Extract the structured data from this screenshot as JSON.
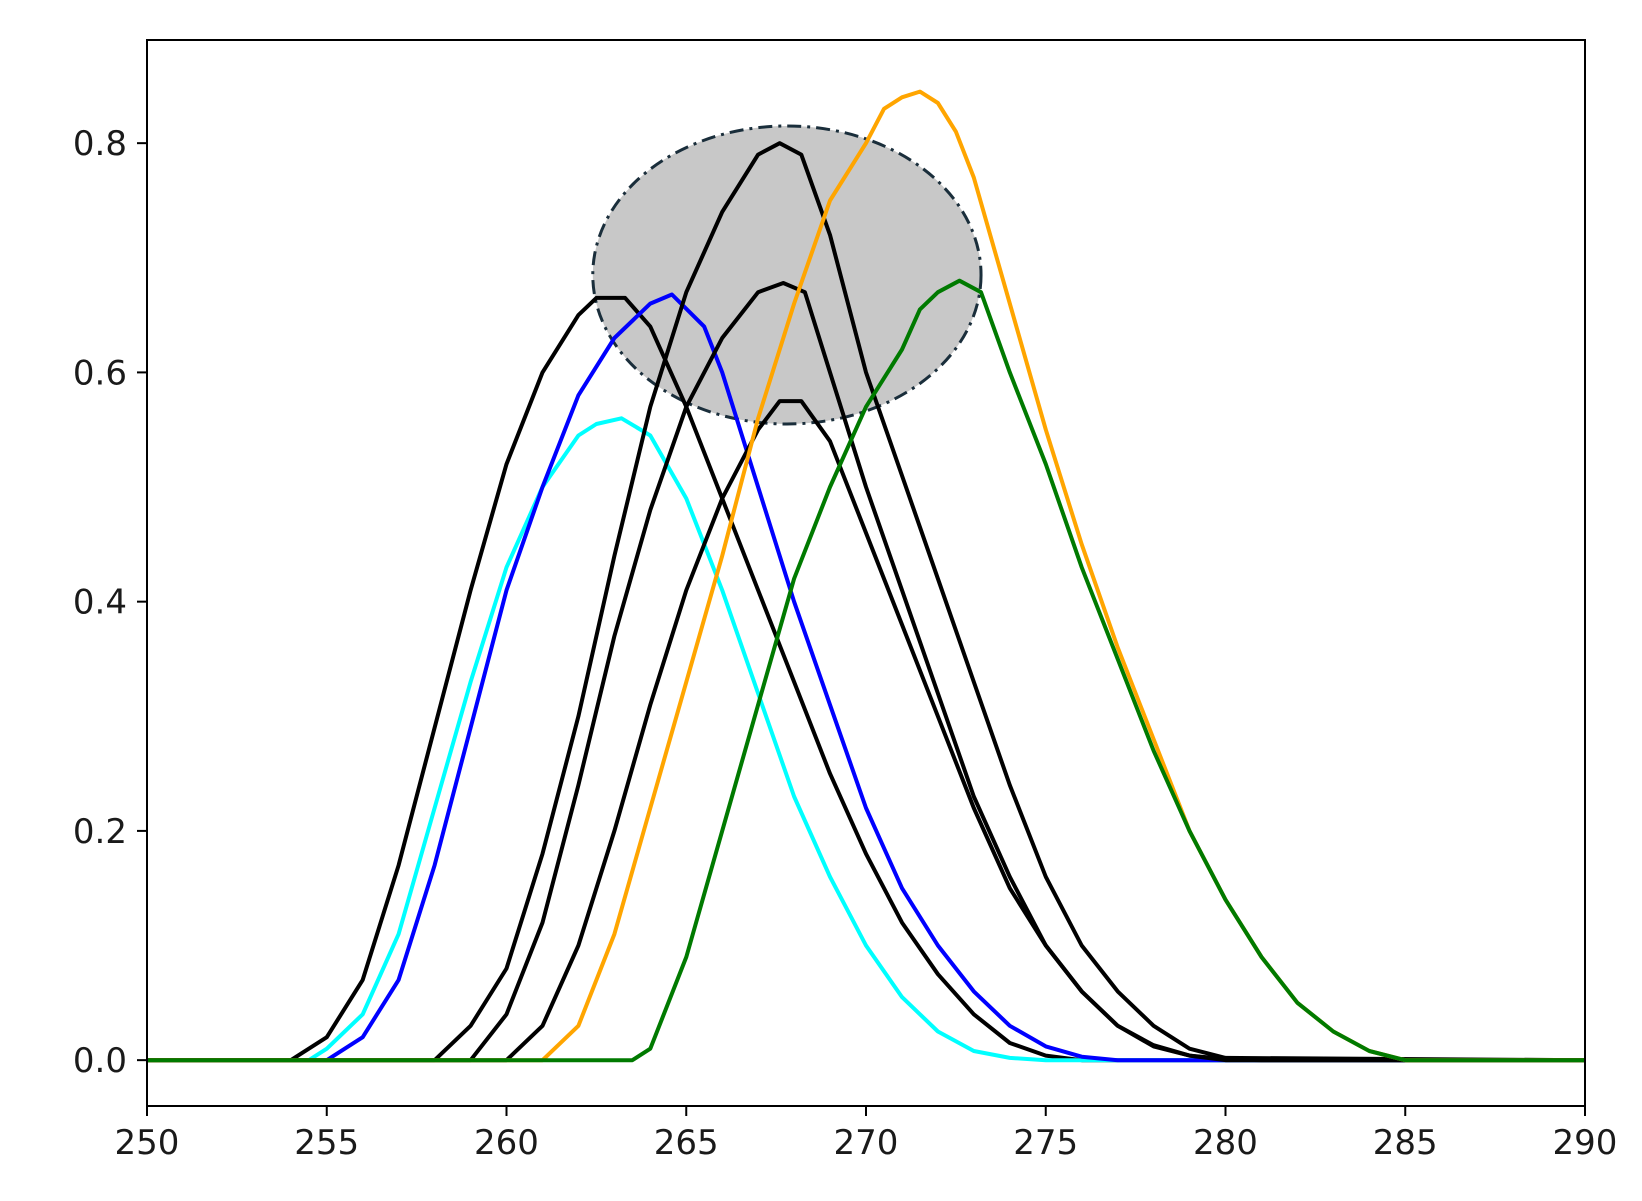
{
  "chart_data": {
    "type": "line",
    "title": "",
    "xlabel": "",
    "ylabel": "",
    "xlim": [
      250,
      290
    ],
    "ylim": [
      -0.04,
      0.89
    ],
    "x_ticks": [
      250,
      255,
      260,
      265,
      270,
      275,
      280,
      285,
      290
    ],
    "x_tick_labels": [
      "250",
      "255",
      "260",
      "265",
      "270",
      "275",
      "280",
      "285",
      "290"
    ],
    "y_ticks": [
      0.0,
      0.2,
      0.4,
      0.6,
      0.8
    ],
    "y_tick_labels": [
      "0.0",
      "0.2",
      "0.4",
      "0.6",
      "0.8"
    ],
    "grid": false,
    "legend": "none",
    "highlight_region": {
      "shape": "ellipse",
      "center": [
        267.8,
        0.685
      ],
      "x_radius": 5.4,
      "y_radius": 0.13,
      "fill": "#c8c8c8",
      "stroke": "#1a2e3b",
      "stroke_style": "dash-dot"
    },
    "series": [
      {
        "color": "#000000",
        "x": [
          250,
          254,
          255,
          256,
          257,
          258,
          259,
          260,
          261,
          262,
          262.5,
          263.3,
          264,
          265,
          266,
          267,
          268,
          269,
          270,
          271,
          272,
          273,
          274,
          275,
          276,
          290
        ],
        "y": [
          0,
          0,
          0.02,
          0.07,
          0.17,
          0.29,
          0.41,
          0.52,
          0.6,
          0.65,
          0.665,
          0.665,
          0.64,
          0.57,
          0.49,
          0.41,
          0.33,
          0.25,
          0.18,
          0.12,
          0.075,
          0.04,
          0.015,
          0.004,
          0,
          0
        ]
      },
      {
        "color": "#00ffff",
        "x": [
          250,
          254.5,
          255,
          256,
          257,
          258,
          259,
          260,
          261,
          262,
          262.5,
          263.2,
          264,
          265,
          266,
          267,
          268,
          269,
          270,
          271,
          272,
          273,
          274,
          275,
          290
        ],
        "y": [
          0,
          0,
          0.01,
          0.04,
          0.11,
          0.22,
          0.33,
          0.43,
          0.5,
          0.545,
          0.555,
          0.56,
          0.545,
          0.49,
          0.41,
          0.32,
          0.23,
          0.16,
          0.1,
          0.055,
          0.025,
          0.008,
          0.002,
          0,
          0
        ]
      },
      {
        "color": "#0000ff",
        "x": [
          250,
          255,
          256,
          257,
          258,
          259,
          260,
          261,
          262,
          263,
          264,
          264.6,
          265.5,
          266,
          267,
          268,
          269,
          270,
          271,
          272,
          273,
          274,
          275,
          276,
          277,
          290
        ],
        "y": [
          0,
          0,
          0.02,
          0.07,
          0.17,
          0.29,
          0.41,
          0.5,
          0.58,
          0.63,
          0.66,
          0.668,
          0.64,
          0.6,
          0.5,
          0.4,
          0.31,
          0.22,
          0.15,
          0.1,
          0.06,
          0.03,
          0.012,
          0.003,
          0,
          0
        ]
      },
      {
        "color": "#000000",
        "x": [
          250,
          258,
          259,
          260,
          261,
          262,
          263,
          264,
          265,
          266,
          267,
          267.6,
          268.2,
          269,
          270,
          271,
          272,
          273,
          274,
          275,
          276,
          277,
          278,
          279,
          280,
          290
        ],
        "y": [
          0,
          0,
          0.03,
          0.08,
          0.18,
          0.3,
          0.44,
          0.57,
          0.67,
          0.74,
          0.79,
          0.8,
          0.79,
          0.72,
          0.6,
          0.51,
          0.42,
          0.33,
          0.24,
          0.16,
          0.1,
          0.06,
          0.03,
          0.01,
          0.002,
          0
        ]
      },
      {
        "color": "#000000",
        "x": [
          250,
          259,
          260,
          261,
          262,
          263,
          264,
          265,
          266,
          267,
          267.7,
          268.3,
          269,
          270,
          271,
          272,
          273,
          274,
          275,
          276,
          277,
          278,
          279,
          280,
          290
        ],
        "y": [
          0,
          0,
          0.04,
          0.12,
          0.24,
          0.37,
          0.48,
          0.57,
          0.63,
          0.67,
          0.678,
          0.67,
          0.6,
          0.5,
          0.41,
          0.32,
          0.23,
          0.16,
          0.1,
          0.06,
          0.03,
          0.012,
          0.004,
          0,
          0
        ]
      },
      {
        "color": "#000000",
        "x": [
          250,
          260,
          261,
          262,
          263,
          264,
          265,
          266,
          267,
          267.6,
          268.2,
          269,
          270,
          271,
          272,
          273,
          274,
          275,
          276,
          277,
          278,
          279,
          280,
          281,
          290
        ],
        "y": [
          0,
          0,
          0.03,
          0.1,
          0.2,
          0.31,
          0.41,
          0.49,
          0.55,
          0.575,
          0.575,
          0.54,
          0.46,
          0.38,
          0.3,
          0.22,
          0.15,
          0.1,
          0.06,
          0.03,
          0.013,
          0.004,
          0.001,
          0,
          0
        ]
      },
      {
        "color": "#ffa500",
        "x": [
          250,
          261,
          262,
          263,
          264,
          265,
          266,
          267,
          268,
          269,
          270,
          270.5,
          271,
          271.5,
          272,
          272.5,
          273,
          274,
          275,
          276,
          277,
          278,
          279,
          280,
          281,
          282,
          283,
          284,
          285,
          290
        ],
        "y": [
          0,
          0,
          0.03,
          0.11,
          0.22,
          0.33,
          0.44,
          0.56,
          0.66,
          0.75,
          0.8,
          0.83,
          0.84,
          0.845,
          0.835,
          0.81,
          0.77,
          0.66,
          0.55,
          0.45,
          0.36,
          0.28,
          0.2,
          0.14,
          0.09,
          0.05,
          0.025,
          0.008,
          0,
          0
        ]
      },
      {
        "color": "#007a00",
        "x": [
          250,
          263.5,
          264,
          265,
          266,
          267,
          268,
          269,
          270,
          271,
          271.5,
          272,
          272.6,
          273.2,
          274,
          275,
          276,
          277,
          278,
          279,
          280,
          281,
          282,
          283,
          284,
          285,
          290
        ],
        "y": [
          0,
          0,
          0.01,
          0.09,
          0.2,
          0.31,
          0.42,
          0.5,
          0.57,
          0.62,
          0.655,
          0.67,
          0.68,
          0.67,
          0.6,
          0.52,
          0.43,
          0.35,
          0.27,
          0.2,
          0.14,
          0.09,
          0.05,
          0.025,
          0.008,
          0,
          0
        ]
      }
    ]
  }
}
